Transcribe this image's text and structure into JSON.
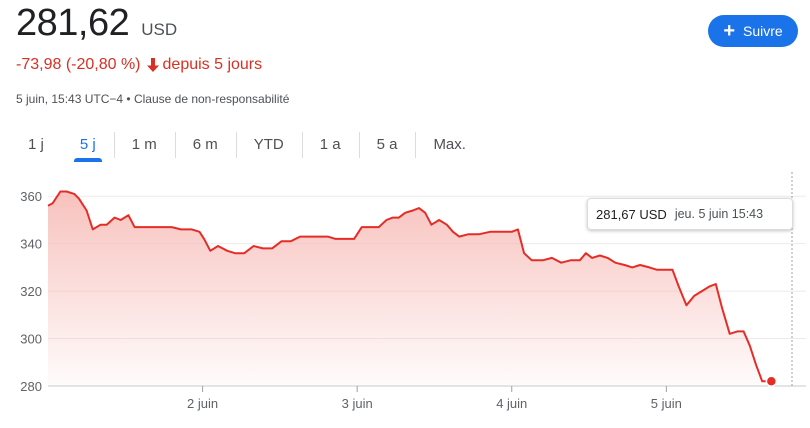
{
  "quote": {
    "price": "281,62",
    "currency": "USD",
    "change": "-73,98 (-20,80 %)",
    "period": "depuis 5 jours",
    "timestamp": "5 juin, 15:43 UTC−4",
    "separator": "•",
    "disclaimer": "Clause de non-responsabilité"
  },
  "follow_button": {
    "label": "Suivre",
    "icon": "plus-icon"
  },
  "tabs": [
    {
      "label": "1 j",
      "active": false
    },
    {
      "label": "5 j",
      "active": true
    },
    {
      "label": "1 m",
      "active": false
    },
    {
      "label": "6 m",
      "active": false
    },
    {
      "label": "YTD",
      "active": false
    },
    {
      "label": "1 a",
      "active": false
    },
    {
      "label": "5 a",
      "active": false
    },
    {
      "label": "Max.",
      "active": false
    }
  ],
  "tooltip": {
    "price": "281,67 USD",
    "date": "jeu. 5 juin 15:43"
  },
  "colors": {
    "line": "#e52d27",
    "fill_top": "#f6b7b2",
    "accent": "#1a73e8",
    "negative": "#d93025"
  },
  "chart_data": {
    "type": "area",
    "y_ticks": [
      280,
      300,
      320,
      340,
      360
    ],
    "ylim": [
      280,
      366
    ],
    "xlim": [
      0,
      4.8
    ],
    "x_tick_labels": [
      {
        "x": 1,
        "label": "2 juin"
      },
      {
        "x": 2,
        "label": "3 juin"
      },
      {
        "x": 3,
        "label": "4 juin"
      },
      {
        "x": 4,
        "label": "5 juin"
      }
    ],
    "grid": true,
    "series": [
      {
        "points": [
          [
            0.0,
            356
          ],
          [
            0.03,
            357
          ],
          [
            0.08,
            362
          ],
          [
            0.12,
            362
          ],
          [
            0.17,
            361
          ],
          [
            0.2,
            359
          ],
          [
            0.25,
            354
          ],
          [
            0.29,
            346
          ],
          [
            0.34,
            348
          ],
          [
            0.38,
            348
          ],
          [
            0.43,
            351
          ],
          [
            0.47,
            350
          ],
          [
            0.52,
            352
          ],
          [
            0.56,
            347
          ],
          [
            0.62,
            347
          ],
          [
            0.68,
            347
          ],
          [
            0.74,
            347
          ],
          [
            0.8,
            347
          ],
          [
            0.86,
            346
          ],
          [
            0.93,
            346
          ],
          [
            0.98,
            345
          ],
          [
            1.01,
            342
          ],
          [
            1.05,
            337
          ],
          [
            1.1,
            339
          ],
          [
            1.16,
            337
          ],
          [
            1.21,
            336
          ],
          [
            1.27,
            336
          ],
          [
            1.33,
            339
          ],
          [
            1.39,
            338
          ],
          [
            1.45,
            338
          ],
          [
            1.51,
            341
          ],
          [
            1.57,
            341
          ],
          [
            1.63,
            343
          ],
          [
            1.69,
            343
          ],
          [
            1.75,
            343
          ],
          [
            1.81,
            343
          ],
          [
            1.86,
            342
          ],
          [
            1.92,
            342
          ],
          [
            1.98,
            342
          ],
          [
            2.03,
            347
          ],
          [
            2.09,
            347
          ],
          [
            2.14,
            347
          ],
          [
            2.19,
            350
          ],
          [
            2.23,
            351
          ],
          [
            2.27,
            351
          ],
          [
            2.31,
            353
          ],
          [
            2.36,
            354
          ],
          [
            2.4,
            355
          ],
          [
            2.44,
            353
          ],
          [
            2.48,
            348
          ],
          [
            2.53,
            350
          ],
          [
            2.58,
            348
          ],
          [
            2.62,
            345
          ],
          [
            2.66,
            343
          ],
          [
            2.72,
            344
          ],
          [
            2.79,
            344
          ],
          [
            2.86,
            345
          ],
          [
            2.93,
            345
          ],
          [
            3.0,
            345
          ],
          [
            3.04,
            346
          ],
          [
            3.08,
            336
          ],
          [
            3.13,
            333
          ],
          [
            3.2,
            333
          ],
          [
            3.26,
            334
          ],
          [
            3.32,
            332
          ],
          [
            3.38,
            333
          ],
          [
            3.44,
            333
          ],
          [
            3.48,
            336
          ],
          [
            3.52,
            334
          ],
          [
            3.57,
            335
          ],
          [
            3.62,
            334
          ],
          [
            3.67,
            332
          ],
          [
            3.73,
            331
          ],
          [
            3.78,
            330
          ],
          [
            3.83,
            331
          ],
          [
            3.89,
            330
          ],
          [
            3.94,
            329
          ],
          [
            4.0,
            329
          ],
          [
            4.04,
            329
          ],
          [
            4.08,
            322
          ],
          [
            4.13,
            314
          ],
          [
            4.18,
            318
          ],
          [
            4.23,
            320
          ],
          [
            4.28,
            322
          ],
          [
            4.32,
            323
          ],
          [
            4.36,
            313
          ],
          [
            4.41,
            302
          ],
          [
            4.46,
            303
          ],
          [
            4.5,
            303
          ],
          [
            4.54,
            297
          ],
          [
            4.58,
            289
          ],
          [
            4.62,
            282
          ],
          [
            4.66,
            282
          ]
        ]
      }
    ],
    "last_point": [
      4.66,
      282
    ]
  }
}
